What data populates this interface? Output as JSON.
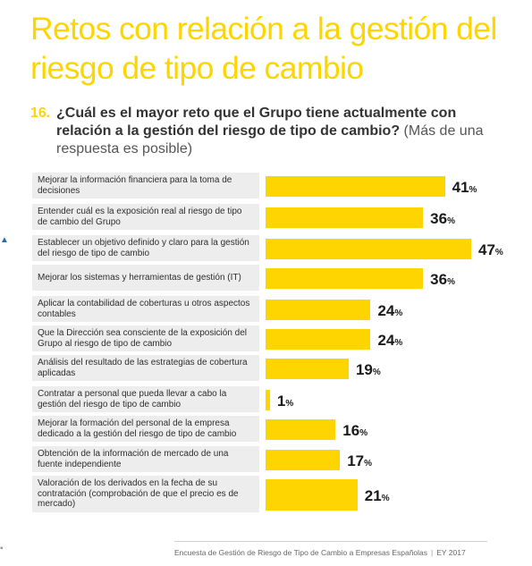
{
  "page": {
    "title": "Retos con relación a la gestión del riesgo de tipo de cambio",
    "question_number": "16.",
    "question_text": "¿Cuál es el mayor reto que el Grupo tiene actualmente con relación a la gestión del riesgo de tipo de cambio?",
    "question_note": "(Más de una respuesta es posible)",
    "footer_text": "Encuesta de Gestión de Riesgo de Tipo de Cambio a Empresas Españolas",
    "footer_sep": "|",
    "footer_year": "EY 2017",
    "accent_color": "#ffd500"
  },
  "chart_data": {
    "type": "bar",
    "orientation": "horizontal",
    "categories": [
      "Mejorar la información financiera para la toma de decisiones",
      "Entender cuál es la exposición real al riesgo de tipo de cambio del Grupo",
      "Establecer un objetivo definido y claro para la gestión del riesgo de tipo de cambio",
      "Mejorar los sistemas y herramientas de gestión (IT)",
      "Aplicar la contabilidad de coberturas u otros aspectos contables",
      "Que la Dirección sea consciente de la exposición del Grupo al riesgo de tipo de cambio",
      "Análisis del resultado de las estrategias de cobertura aplicadas",
      "Contratar a personal que pueda llevar a cabo la gestión del riesgo de tipo de cambio",
      "Mejorar la formación del personal de la empresa dedicado a la gestión del riesgo de tipo de cambio",
      "Obtención de la información de mercado de una fuente independiente",
      "Valoración de los derivados en la fecha de su contratación (comprobación de que el precio es de mercado)"
    ],
    "values": [
      41,
      36,
      47,
      36,
      24,
      24,
      19,
      1,
      16,
      17,
      21
    ],
    "value_suffix": "%",
    "xlim": [
      0,
      47
    ],
    "bar_color": "#ffd500",
    "grid": false,
    "legend": false
  }
}
